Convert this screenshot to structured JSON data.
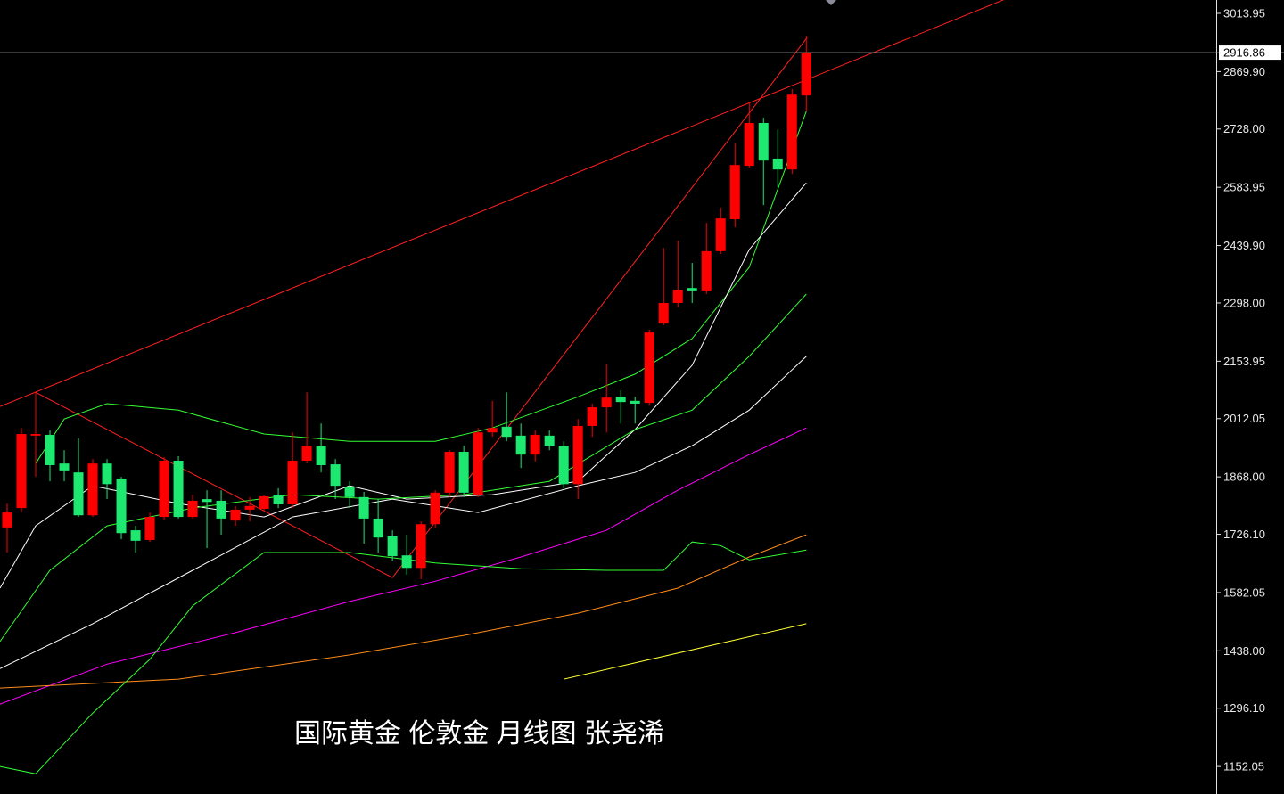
{
  "chart_data": {
    "type": "candlestick",
    "annotation": "国际黄金 伦敦金  月线图  张尧浠",
    "categories": [
      null,
      null,
      null,
      null,
      null,
      null,
      null,
      null,
      null,
      null,
      null,
      null,
      null,
      null,
      null,
      null,
      null,
      null,
      null,
      null,
      null,
      null,
      null,
      null,
      null,
      null,
      null,
      null,
      null,
      null,
      null,
      null,
      null,
      null,
      null,
      null,
      null,
      null,
      null,
      null,
      null,
      null,
      null,
      null,
      null,
      null,
      null,
      null,
      null,
      null,
      null,
      null,
      null,
      null,
      null,
      null,
      null
    ],
    "open": [
      1743,
      1791,
      1970,
      1972,
      1901,
      1879,
      1773,
      1901,
      1864,
      1736,
      1712,
      1769,
      1908,
      1769,
      1813,
      1809,
      1760,
      1787,
      1789,
      1824,
      1800,
      1908,
      1945,
      1899,
      1844,
      1818,
      1765,
      1721,
      1674,
      1643,
      1751,
      1829,
      1930,
      1824,
      1978,
      1992,
      1970,
      1923,
      1970,
      1945,
      1850,
      1994,
      2040,
      2066,
      2056,
      2051,
      2247,
      2298,
      2335,
      2329,
      2426,
      2505,
      2637,
      2743,
      2655,
      2628,
      2811
    ],
    "high": [
      1802,
      1989,
      2077,
      1983,
      1934,
      1963,
      1912,
      1912,
      1868,
      1747,
      1780,
      1917,
      1919,
      1824,
      1835,
      1835,
      1796,
      1818,
      1824,
      1840,
      1978,
      2077,
      2000,
      1912,
      1857,
      1831,
      1813,
      1736,
      1725,
      1758,
      1835,
      1934,
      1945,
      1989,
      2056,
      2077,
      2000,
      1983,
      1983,
      1956,
      2011,
      2049,
      2148,
      2082,
      2066,
      2232,
      2434,
      2452,
      2397,
      2496,
      2534,
      2694,
      2794,
      2756,
      2727,
      2827,
      2959
    ],
    "low": [
      1681,
      1780,
      1868,
      1857,
      1857,
      1769,
      1769,
      1813,
      1714,
      1681,
      1707,
      1762,
      1765,
      1765,
      1692,
      1725,
      1747,
      1758,
      1780,
      1791,
      1791,
      1901,
      1879,
      1813,
      1791,
      1703,
      1681,
      1659,
      1626,
      1615,
      1743,
      1818,
      1818,
      1818,
      1967,
      1956,
      1890,
      1906,
      1934,
      1840,
      1813,
      1967,
      1978,
      2000,
      2000,
      2044,
      2243,
      2287,
      2298,
      2320,
      2419,
      2485,
      2633,
      2540,
      2584,
      2617,
      2772
    ],
    "close": [
      1780,
      1974,
      1974,
      1897,
      1884,
      1773,
      1901,
      1850,
      1729,
      1710,
      1769,
      1908,
      1769,
      1809,
      1806,
      1765,
      1787,
      1796,
      1820,
      1800,
      1908,
      1945,
      1897,
      1846,
      1818,
      1765,
      1718,
      1672,
      1643,
      1751,
      1829,
      1930,
      1829,
      1978,
      1989,
      1967,
      1923,
      1972,
      1945,
      1850,
      1994,
      2040,
      2064,
      2053,
      2049,
      2225,
      2298,
      2331,
      2329,
      2426,
      2507,
      2639,
      2743,
      2650,
      2628,
      2813,
      2916.86
    ],
    "up_color": "#ff0000",
    "down_color": "#1de870",
    "lines": [
      {
        "color": "#ff2020",
        "x": [
          -0.5,
          69.8
        ],
        "values": [
          2042,
          3047
        ]
      },
      {
        "color": "#ff2020",
        "x": [
          2,
          27,
          56.06
        ],
        "values": [
          2077,
          1619,
          2954
        ]
      },
      {
        "color": "#33ff33",
        "x": [
          2,
          4,
          7,
          12,
          18,
          24,
          30,
          34,
          40,
          44,
          48,
          52,
          56
        ],
        "values": [
          1901,
          2011,
          2049,
          2033,
          1974,
          1956,
          1956,
          1989,
          2066,
          2122,
          2210,
          2386,
          2772
        ]
      },
      {
        "color": "#ffffff",
        "x": [
          -0.5,
          2,
          6,
          12,
          18,
          24,
          28,
          34,
          40,
          44,
          48,
          52,
          56
        ],
        "values": [
          1593,
          1747,
          1846,
          1802,
          1769,
          1846,
          1813,
          1824,
          1857,
          1985,
          2144,
          2430,
          2595
        ]
      },
      {
        "color": "#33ff33",
        "x": [
          -0.5,
          3,
          7,
          13,
          20,
          26,
          32,
          38,
          44,
          48,
          52,
          56
        ],
        "values": [
          1461,
          1637,
          1747,
          1791,
          1824,
          1813,
          1824,
          1857,
          1985,
          2033,
          2166,
          2320
        ]
      },
      {
        "color": "#ffffff",
        "x": [
          -0.5,
          6,
          13,
          20,
          27,
          33,
          40,
          44,
          48,
          52,
          56
        ],
        "values": [
          1394,
          1505,
          1637,
          1769,
          1813,
          1780,
          1846,
          1879,
          1945,
          2033,
          2166
        ]
      },
      {
        "color": "#ff00ff",
        "x": [
          -0.5,
          7,
          16,
          24,
          30,
          36,
          42,
          47,
          52,
          56
        ],
        "values": [
          1306,
          1405,
          1483,
          1560,
          1610,
          1670,
          1736,
          1835,
          1923,
          1989
        ]
      },
      {
        "color": "#ff8c1a",
        "x": [
          -0.5,
          12,
          24,
          32,
          40,
          47,
          52,
          56
        ],
        "values": [
          1346,
          1368,
          1428,
          1476,
          1531,
          1593,
          1670,
          1725
        ]
      },
      {
        "color": "#ffff33",
        "x": [
          39,
          56
        ],
        "values": [
          1368,
          1505
        ]
      },
      {
        "color": "#33ff33",
        "x": [
          -0.5,
          2,
          6,
          10,
          13,
          18,
          24,
          30,
          36,
          42,
          46,
          48,
          50,
          52,
          56
        ],
        "values": [
          1152,
          1134,
          1284,
          1417,
          1549,
          1681,
          1681,
          1655,
          1641,
          1637,
          1637,
          1707,
          1698,
          1663,
          1687
        ]
      }
    ],
    "xlim": [
      -0.5,
      84.6
    ],
    "ylim": [
      1084,
      3047
    ],
    "yticks": [
      3013.95,
      {
        "value": 2869.9,
        "label": "2869.90"
      },
      {
        "value": 2728,
        "label": "2728.00"
      },
      2583.95,
      {
        "value": 2439.9,
        "label": "2439.90"
      },
      {
        "value": 2298,
        "label": "2298.00"
      },
      2153.95,
      2012.05,
      {
        "value": 1868,
        "label": "1868.00"
      },
      {
        "value": 1726.1,
        "label": "1726.10"
      },
      1582.05,
      {
        "value": 1438,
        "label": "1438.00"
      },
      {
        "value": 1296.1,
        "label": "1296.10"
      },
      1152.05
    ],
    "last_price": 2916.86
  }
}
